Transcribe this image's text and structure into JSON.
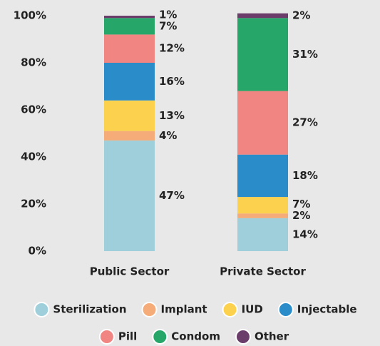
{
  "chart_data": {
    "type": "stacked_bar",
    "categories": [
      "Public Sector",
      "Private Sector"
    ],
    "series": [
      {
        "name": "Sterilization",
        "color": "#9ecfdb",
        "values": [
          47,
          14
        ],
        "value_labels": [
          "47%",
          "14%"
        ]
      },
      {
        "name": "Implant",
        "color": "#f5ac78",
        "values": [
          4,
          2
        ],
        "value_labels": [
          "4%",
          "2%"
        ]
      },
      {
        "name": "IUD",
        "color": "#fcd14d",
        "values": [
          13,
          7
        ],
        "value_labels": [
          "13%",
          "7%"
        ]
      },
      {
        "name": "Injectable",
        "color": "#2a8cc8",
        "values": [
          16,
          18
        ],
        "value_labels": [
          "16%",
          "18%"
        ]
      },
      {
        "name": "Pill",
        "color": "#f08582",
        "values": [
          12,
          27
        ],
        "value_labels": [
          "12%",
          "27%"
        ]
      },
      {
        "name": "Condom",
        "color": "#27a66a",
        "values": [
          7,
          31
        ],
        "value_labels": [
          "7%",
          "31%"
        ]
      },
      {
        "name": "Other",
        "color": "#6b3d6b",
        "values": [
          1,
          2
        ],
        "value_labels": [
          "1%",
          "2%"
        ]
      }
    ],
    "ylim": [
      0,
      100
    ],
    "yticks": [
      {
        "value": 0,
        "label": "0%"
      },
      {
        "value": 20,
        "label": "20%"
      },
      {
        "value": 40,
        "label": "40%"
      },
      {
        "value": 60,
        "label": "60%"
      },
      {
        "value": 80,
        "label": "80%"
      },
      {
        "value": 100,
        "label": "100%"
      }
    ],
    "legend": "bottom"
  }
}
